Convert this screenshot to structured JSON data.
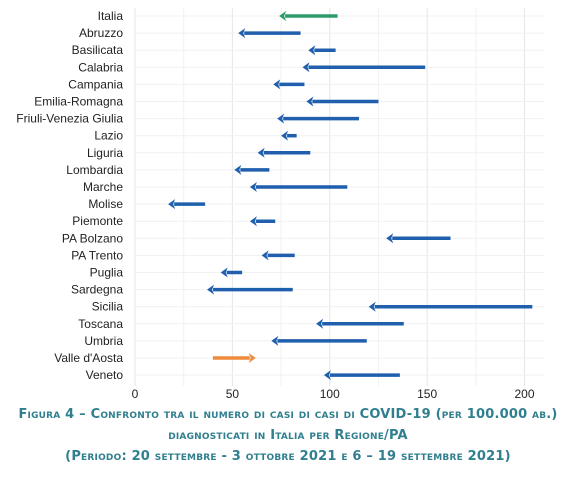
{
  "chart_data": {
    "type": "arrow-dumbbell",
    "categories": [
      "Italia",
      "Abruzzo",
      "Basilicata",
      "Calabria",
      "Campania",
      "Emilia-Romagna",
      "Friuli-Venezia Giulia",
      "Lazio",
      "Liguria",
      "Lombardia",
      "Marche",
      "Molise",
      "Piemonte",
      "PA Bolzano",
      "PA Trento",
      "Puglia",
      "Sardegna",
      "Sicilia",
      "Toscana",
      "Umbria",
      "Valle d'Aosta",
      "Veneto"
    ],
    "series": [
      {
        "values_start": [
          104,
          85,
          103,
          149,
          87,
          125,
          115,
          83,
          90,
          69,
          109,
          36,
          72,
          162,
          82,
          55,
          81,
          204,
          138,
          119,
          40,
          136
        ]
      },
      {
        "values_end": [
          74,
          53,
          89,
          86,
          71,
          88,
          73,
          75,
          63,
          51,
          59,
          17,
          59,
          129,
          65,
          44,
          37,
          120,
          93,
          70,
          62,
          97
        ]
      }
    ],
    "x_ticks": [
      "0",
      "50",
      "100",
      "150",
      "200"
    ],
    "xlim": [
      0,
      210
    ],
    "grid": true,
    "colors": {
      "default_arrow": "#1f5fae",
      "italia_arrow": "#2e9b6c",
      "valle_arrow": "#f08a3c",
      "grid": "#e6e6e6"
    }
  },
  "caption": {
    "line1": "Figura 4 – Confronto tra il numero di casi di casi di COVID-19 (per 100.000 ab.)",
    "line2": "diagnosticati in Italia per Regione/PA",
    "line3": "(Periodo: 20 settembre - 3 ottobre 2021 e 6 – 19 settembre 2021)"
  }
}
